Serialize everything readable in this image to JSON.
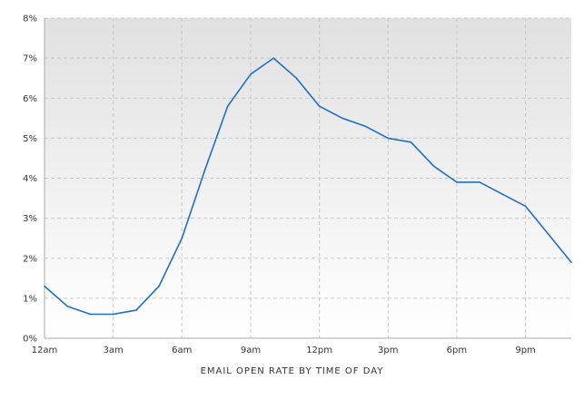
{
  "chart_data": {
    "type": "area",
    "xlabel": "EMAIL OPEN RATE BY TIME OF DAY",
    "ylabel": "",
    "x": [
      0,
      1,
      2,
      3,
      4,
      5,
      6,
      7,
      8,
      9,
      10,
      11,
      12,
      13,
      14,
      15,
      16,
      17,
      18,
      19,
      20,
      21,
      22,
      23
    ],
    "x_tick_labels": [
      {
        "at": 0,
        "label": "12am"
      },
      {
        "at": 3,
        "label": "3am"
      },
      {
        "at": 6,
        "label": "6am"
      },
      {
        "at": 9,
        "label": "9am"
      },
      {
        "at": 12,
        "label": "12pm"
      },
      {
        "at": 15,
        "label": "3pm"
      },
      {
        "at": 18,
        "label": "6pm"
      },
      {
        "at": 21,
        "label": "9pm"
      }
    ],
    "y_tick_labels": [
      "0%",
      "1%",
      "2%",
      "3%",
      "4%",
      "5%",
      "6%",
      "7%",
      "8%"
    ],
    "series": [
      {
        "values": [
          1.3,
          0.8,
          0.6,
          0.6,
          0.7,
          1.3,
          2.5,
          4.2,
          5.8,
          6.6,
          7.0,
          6.5,
          5.8,
          5.5,
          5.3,
          5.0,
          4.9,
          4.3,
          3.9,
          3.9,
          3.6,
          3.3,
          2.6,
          1.9
        ]
      }
    ],
    "ylim": [
      0,
      8
    ],
    "xlim": [
      0,
      23
    ],
    "grid": true,
    "colors": {
      "line": "#1f6fc5",
      "grid": "#c8c8c8",
      "axis": "#aaaaaa",
      "area_top": "#e1e1e1",
      "area_bottom": "#ffffff"
    }
  }
}
